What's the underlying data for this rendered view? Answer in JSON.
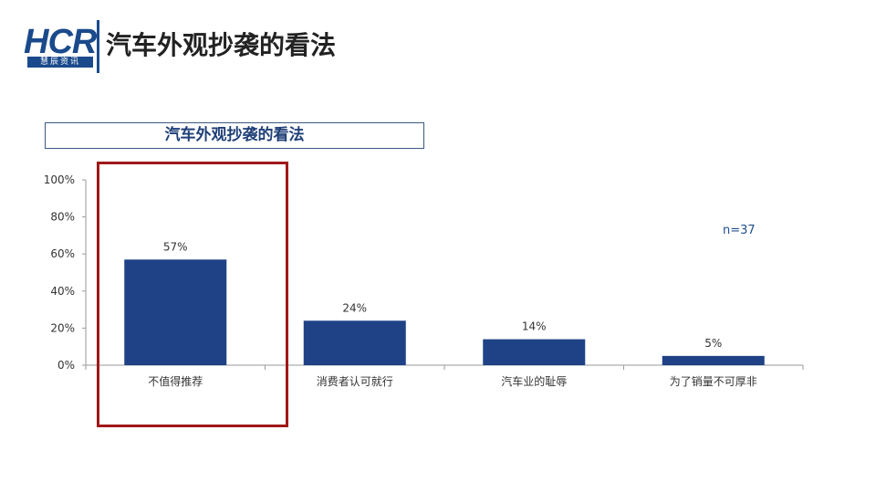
{
  "header": {
    "logo_text": "HCR",
    "logo_subtext": "慧辰资讯",
    "title": "汽车外观抄袭的看法"
  },
  "colors": {
    "bar": "#1f4286",
    "highlight": "#a01818",
    "brand": "#1a4a8c"
  },
  "chart_data": {
    "type": "bar",
    "title": "汽车外观抄袭的看法",
    "categories": [
      "不值得推荐",
      "消费者认可就行",
      "汽车业的耻辱",
      "为了销量不可厚非"
    ],
    "values": [
      57,
      24,
      14,
      5
    ],
    "value_labels": [
      "57%",
      "24%",
      "14%",
      "5%"
    ],
    "ylim": [
      0,
      100
    ],
    "yticks": [
      0,
      20,
      40,
      60,
      80,
      100
    ],
    "ytick_labels": [
      "0%",
      "20%",
      "40%",
      "60%",
      "80%",
      "100%"
    ],
    "sample_note": "n=37",
    "highlighted_category": "不值得推荐",
    "grid": false
  }
}
